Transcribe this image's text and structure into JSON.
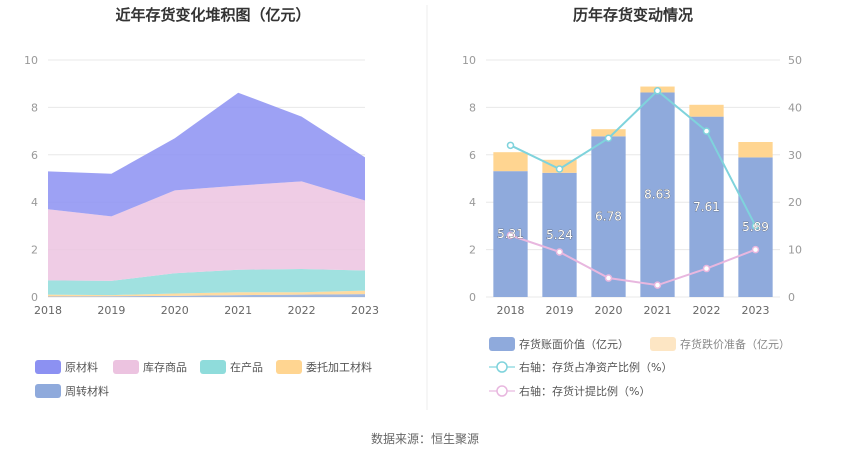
{
  "chart_data": [
    {
      "type": "area",
      "title": "近年存货变化堆积图（亿元）",
      "categories": [
        "2018",
        "2019",
        "2020",
        "2021",
        "2022",
        "2023"
      ],
      "ylim": [
        0,
        10
      ],
      "yticks": [
        0,
        2,
        4,
        6,
        8,
        10
      ],
      "stacked": true,
      "series": [
        {
          "name": "周转材料",
          "color": "#8faadc",
          "values": [
            0.02,
            0.03,
            0.05,
            0.08,
            0.1,
            0.12
          ]
        },
        {
          "name": "委托加工材料",
          "color": "#ffd591",
          "values": [
            0.08,
            0.05,
            0.1,
            0.12,
            0.1,
            0.15
          ]
        },
        {
          "name": "在产品",
          "color": "#8fdcdb",
          "values": [
            0.6,
            0.6,
            0.85,
            0.95,
            0.98,
            0.85
          ]
        },
        {
          "name": "库存商品",
          "color": "#ecc3e0",
          "values": [
            3.0,
            2.72,
            3.5,
            3.55,
            3.7,
            2.95
          ]
        },
        {
          "name": "原材料",
          "color": "#8c91f2",
          "values": [
            1.6,
            1.8,
            2.2,
            3.92,
            2.73,
            1.82
          ]
        }
      ],
      "legend_position": "bottom"
    },
    {
      "type": "bar",
      "title": "历年存货变动情况",
      "categories": [
        "2018",
        "2019",
        "2020",
        "2021",
        "2022",
        "2023"
      ],
      "ylim": [
        0,
        10
      ],
      "yticks": [
        0,
        2,
        4,
        6,
        8,
        10
      ],
      "y2lim": [
        0,
        50
      ],
      "y2ticks": [
        0,
        10,
        20,
        30,
        40,
        50
      ],
      "series": [
        {
          "name": "存货账面价值（亿元）",
          "kind": "bar",
          "axis": "left",
          "color": "#8faadc",
          "values": [
            5.31,
            5.24,
            6.78,
            8.63,
            7.61,
            5.89
          ],
          "labels": [
            "5.31",
            "5.24",
            "6.78",
            "8.63",
            "7.61",
            "5.89"
          ]
        },
        {
          "name": "存货跌价准备（亿元）",
          "kind": "bar-stack",
          "axis": "left",
          "color": "#ffd591",
          "values": [
            0.8,
            0.55,
            0.3,
            0.25,
            0.5,
            0.65
          ]
        },
        {
          "name": "右轴：存货占净资产比例（%）",
          "kind": "line",
          "axis": "right",
          "color": "#7fd3dc",
          "values": [
            32,
            27,
            33.5,
            43.5,
            35,
            15
          ]
        },
        {
          "name": "右轴：存货计提比例（%）",
          "kind": "line",
          "axis": "right",
          "color": "#e8b7df",
          "values": [
            13,
            9.5,
            4,
            2.5,
            6,
            10
          ]
        }
      ],
      "legend_position": "bottom"
    }
  ],
  "footer": {
    "source": "数据来源：恒生聚源"
  }
}
